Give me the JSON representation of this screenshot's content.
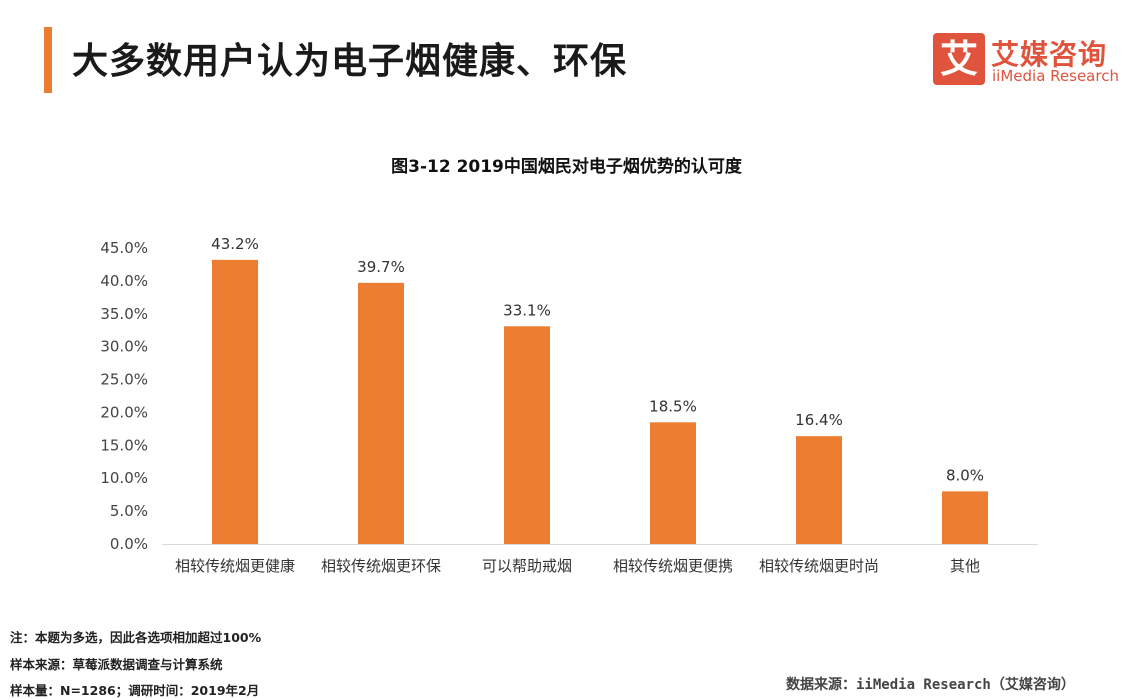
{
  "header": {
    "title": "大多数用户认为电子烟健康、环保",
    "accent_color": "#ed7d31"
  },
  "logo": {
    "mark": "艾",
    "name_cn": "艾媒咨询",
    "name_en": "iiMedia Research",
    "color": "#e0533d"
  },
  "chart_data": {
    "type": "bar",
    "title": "图3-12 2019中国烟民对电子烟优势的认可度",
    "categories": [
      "相较传统烟更健康",
      "相较传统烟更环保",
      "可以帮助戒烟",
      "相较传统烟更便携",
      "相较传统烟更时尚",
      "其他"
    ],
    "values": [
      43.2,
      39.7,
      33.1,
      18.5,
      16.4,
      8.0
    ],
    "value_labels": [
      "43.2%",
      "39.7%",
      "33.1%",
      "18.5%",
      "16.4%",
      "8.0%"
    ],
    "yticks": [
      "0.0%",
      "5.0%",
      "10.0%",
      "15.0%",
      "20.0%",
      "25.0%",
      "30.0%",
      "35.0%",
      "40.0%",
      "45.0%"
    ],
    "ylim": [
      0,
      45
    ],
    "bar_color": "#ed7d31",
    "xlabel": "",
    "ylabel": ""
  },
  "footer": {
    "note": "注：本题为多选，因此各选项相加超过100%",
    "sample_source": "样本来源：草莓派数据调查与计算系统",
    "sample_size": "样本量：N=1286；调研时间：2019年2月",
    "data_source": "数据来源：iiMedia Research（艾媒咨询）"
  }
}
